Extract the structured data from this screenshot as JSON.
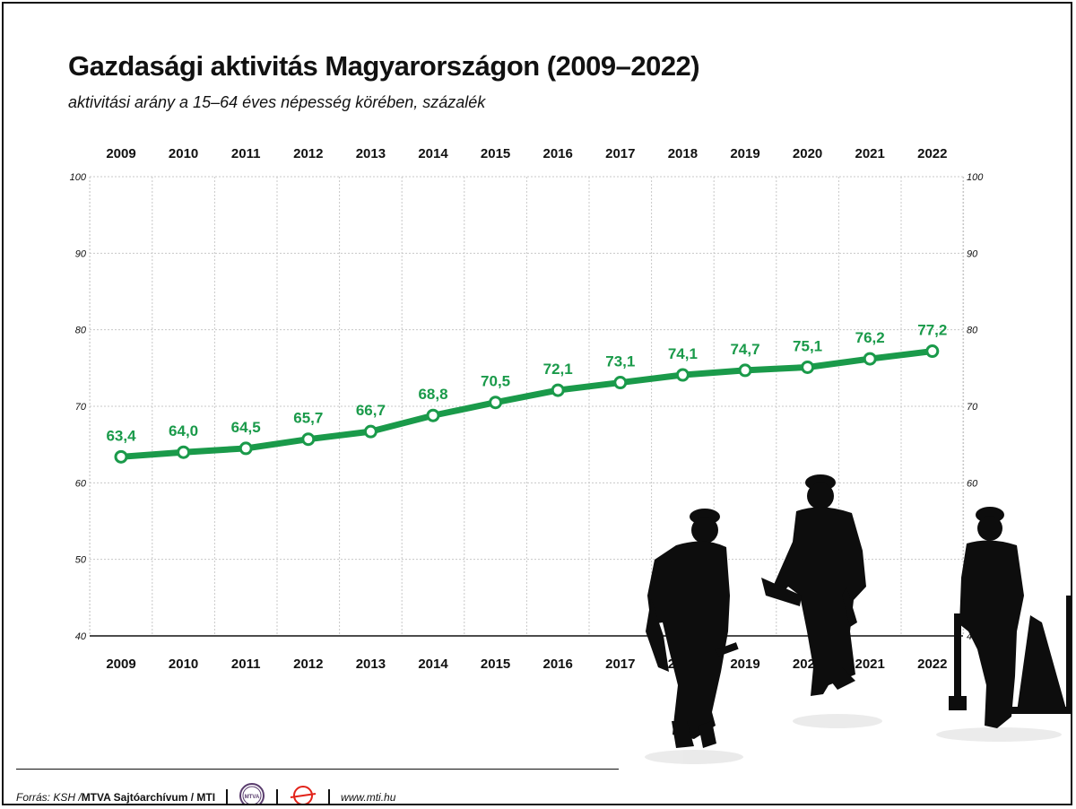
{
  "title": "Gazdasági aktivitás Magyarországon (2009–2022)",
  "subtitle": "aktivitási arány a 15–64 éves népesség körében, százalék",
  "footer": {
    "source_prefix": "Forrás: KSH / ",
    "source_bold": "MTVA Sajtóarchívum / MTI",
    "logo1_text": "MTVA",
    "url": "www.mti.hu"
  },
  "colors": {
    "line": "#1a9a4a",
    "label": "#1a9a4a",
    "grid": "#c8c8c8",
    "text": "#111111"
  },
  "chart_data": {
    "type": "line",
    "categories": [
      "2009",
      "2010",
      "2011",
      "2012",
      "2013",
      "2014",
      "2015",
      "2016",
      "2017",
      "2018",
      "2019",
      "2020",
      "2021",
      "2022"
    ],
    "series": [
      {
        "values": [
          63.4,
          64.0,
          64.5,
          65.7,
          66.7,
          68.8,
          70.5,
          72.1,
          73.1,
          74.1,
          74.7,
          75.1,
          76.2,
          77.2
        ]
      }
    ],
    "data_labels": [
      "63,4",
      "64,0",
      "64,5",
      "65,7",
      "66,7",
      "68,8",
      "70,5",
      "72,1",
      "73,1",
      "74,1",
      "74,7",
      "75,1",
      "76,2",
      "77,2"
    ],
    "ylim": [
      40,
      100
    ],
    "yticks": [
      40,
      50,
      60,
      70,
      80,
      90,
      100
    ],
    "ytick_labels": [
      "40",
      "50",
      "60",
      "70",
      "80",
      "90",
      "100"
    ],
    "grid": true,
    "xlabels_top": true,
    "xlabels_bottom": true,
    "yaxis_both_sides": true
  }
}
